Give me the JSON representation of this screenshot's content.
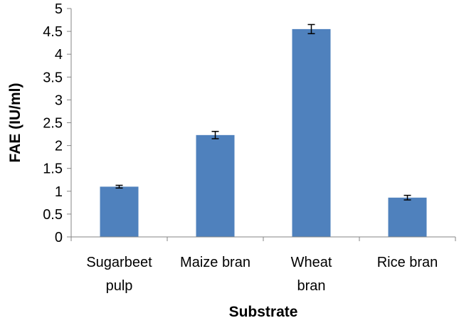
{
  "chart_data": {
    "type": "bar",
    "categories": [
      [
        "Sugarbeet",
        "pulp"
      ],
      [
        "Maize bran"
      ],
      [
        "Wheat",
        "bran"
      ],
      [
        "Rice bran"
      ]
    ],
    "values": [
      1.1,
      2.23,
      4.55,
      0.86
    ],
    "errors": [
      0.03,
      0.08,
      0.1,
      0.05
    ],
    "xlabel": "Substrate",
    "ylabel": "FAE (IU/ml)",
    "ylim": [
      0,
      5
    ],
    "yticks": [
      "0",
      "0.5",
      "1",
      "1.5",
      "2",
      "2.5",
      "3",
      "3.5",
      "4",
      "4.5",
      "5"
    ],
    "bar_color": "#4f81bd",
    "grid": false
  }
}
